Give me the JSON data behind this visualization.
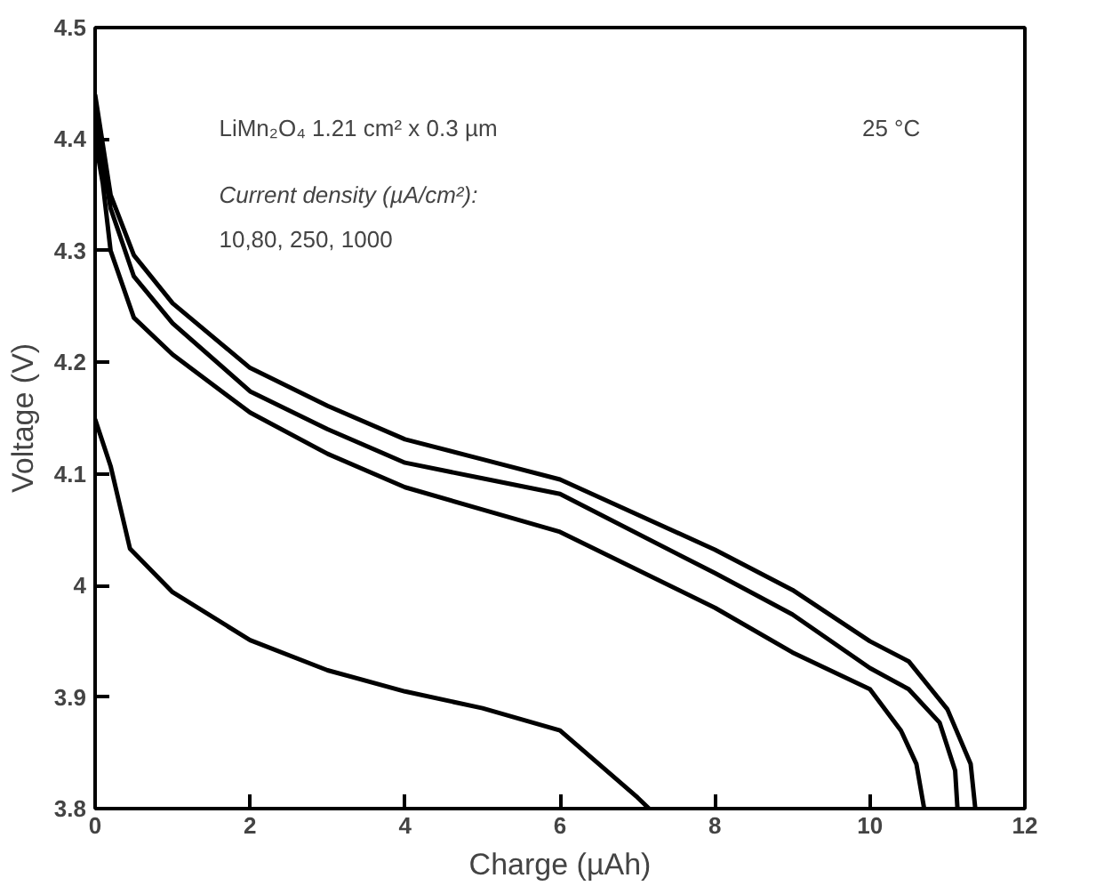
{
  "chart_data": {
    "type": "line",
    "xlabel": "Charge (µAh)",
    "ylabel": "Voltage (V)",
    "xlim": [
      0,
      12
    ],
    "ylim": [
      3.8,
      4.5
    ],
    "xticks": [
      0,
      2,
      4,
      6,
      8,
      10,
      12
    ],
    "yticks": [
      3.8,
      3.9,
      4,
      4.1,
      4.2,
      4.3,
      4.4,
      4.5
    ],
    "grid": false,
    "marker": "none",
    "line_style": "solid",
    "annotations": [
      "LiMn₂O₄  1.21 cm² x 0.3 µm",
      "25 °C",
      "Current density (µA/cm²):",
      "10,80, 250, 1000"
    ],
    "series": [
      {
        "color": "#000000",
        "x": [
          0,
          0.2,
          0.5,
          1,
          2,
          3,
          4,
          5,
          6,
          8,
          9,
          10,
          10.5,
          11,
          11.3,
          11.36
        ],
        "values": [
          4.44,
          4.35,
          4.296,
          4.253,
          4.195,
          4.161,
          4.131,
          4.113,
          4.095,
          4.032,
          3.996,
          3.95,
          3.932,
          3.889,
          3.84,
          3.8
        ]
      },
      {
        "color": "#000000",
        "x": [
          0,
          0.2,
          0.5,
          1,
          2,
          3,
          4,
          5,
          6,
          8,
          9,
          10,
          10.5,
          10.9,
          11.1,
          11.13
        ],
        "values": [
          4.42,
          4.338,
          4.277,
          4.235,
          4.174,
          4.14,
          4.11,
          4.096,
          4.082,
          4.011,
          3.974,
          3.926,
          3.907,
          3.877,
          3.834,
          3.8
        ]
      },
      {
        "color": "#000000",
        "x": [
          0,
          0.1,
          0.2,
          0.5,
          1,
          2,
          3,
          4,
          5,
          6,
          8,
          9,
          10,
          10.4,
          10.6,
          10.7
        ],
        "values": [
          4.4,
          4.36,
          4.3,
          4.24,
          4.207,
          4.155,
          4.118,
          4.088,
          4.068,
          4.048,
          3.98,
          3.94,
          3.907,
          3.87,
          3.84,
          3.8
        ]
      },
      {
        "color": "#000000",
        "x": [
          0,
          0.2,
          0.45,
          1,
          2,
          3,
          4,
          5,
          6,
          7,
          7.15
        ],
        "values": [
          4.149,
          4.107,
          4.033,
          3.994,
          3.951,
          3.924,
          3.905,
          3.89,
          3.87,
          3.81,
          3.8
        ]
      }
    ]
  }
}
